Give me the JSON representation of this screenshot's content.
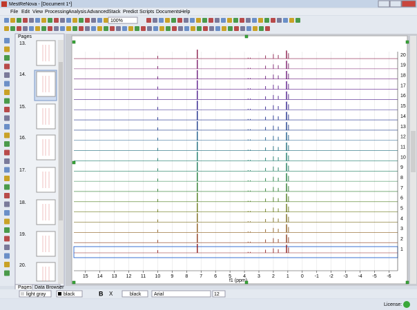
{
  "window": {
    "title": "MestReNova - [Document 1*]"
  },
  "menu": [
    "File",
    "Edit",
    "View",
    "Processing",
    "Analysis",
    "Advanced",
    "Stack",
    "Predict",
    "Scripts",
    "Documents",
    "Help"
  ],
  "toolbar": {
    "zoom": "100%"
  },
  "pages_panel": {
    "title": "Pages",
    "pages": [
      "13.",
      "14.",
      "15.",
      "16.",
      "17.",
      "18.",
      "19.",
      "20."
    ]
  },
  "tabs": [
    "Pages",
    "Data Browser"
  ],
  "spectrum": {
    "type": "stacked-spectra",
    "xlabel": "f1 (ppm)",
    "xlim": [
      15.8,
      -6.6
    ],
    "xticks": [
      15,
      14,
      13,
      12,
      11,
      10,
      9,
      8,
      7,
      6,
      5,
      4,
      3,
      2,
      1,
      0,
      -1,
      -2,
      -3,
      -4,
      -5,
      -6
    ],
    "trace_labels": [
      1,
      2,
      3,
      4,
      5,
      6,
      7,
      8,
      9,
      10,
      11,
      12,
      13,
      14,
      15,
      16,
      17,
      18,
      19,
      20
    ],
    "trace_colors": [
      "#8b1a1a",
      "#8b3a1a",
      "#8b5a1a",
      "#7a6a1a",
      "#6a7a1a",
      "#4a7a1a",
      "#2a7a2a",
      "#1a7a3a",
      "#1a7a5a",
      "#1a7a6a",
      "#1a6a7a",
      "#1a5a8a",
      "#1a3a8a",
      "#1a2a8a",
      "#2a1a8a",
      "#4a1a8a",
      "#5a1a8a",
      "#6a1a7a",
      "#7a1a6a",
      "#8a1a4a"
    ],
    "peak_ppm": [
      10.0,
      7.26,
      3.75,
      3.6,
      2.54,
      2.0,
      1.66,
      1.09,
      0.95
    ],
    "peak_intensity": [
      0.3,
      1.0,
      0.1,
      0.1,
      0.35,
      0.5,
      0.4,
      0.9,
      0.6
    ]
  },
  "format_bar": {
    "fill_color": "light gray",
    "line_color": "black",
    "buttons": [
      "B",
      "X"
    ],
    "font_color": "black",
    "font": "Arial",
    "font_size": "12"
  },
  "status": {
    "license": "License:"
  }
}
